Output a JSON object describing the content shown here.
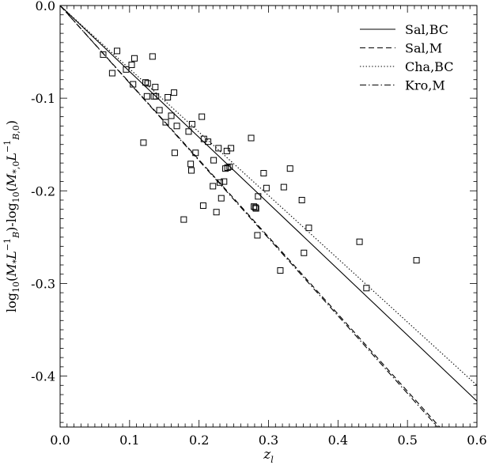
{
  "chart_data": {
    "type": "scatter",
    "title": "",
    "xlabel": "z_l",
    "xlabel_main": "z",
    "xlabel_sub": "l",
    "ylabel": "log10(M*LB^-1)-log10(M*,0LB,0^-1)",
    "xlim": [
      0.0,
      0.6
    ],
    "ylim": [
      -0.455,
      0.0
    ],
    "xticks": [
      0.0,
      0.1,
      0.2,
      0.3,
      0.4,
      0.5,
      0.6
    ],
    "xtick_labels": [
      "0.0",
      "0.1",
      "0.2",
      "0.3",
      "0.4",
      "0.5",
      "0.6"
    ],
    "yticks": [
      0.0,
      -0.1,
      -0.2,
      -0.3,
      -0.4
    ],
    "ytick_labels": [
      "0.0",
      "-0.1",
      "-0.2",
      "-0.3",
      "-0.4"
    ],
    "grid": false,
    "legend_position": "top-right",
    "series": [
      {
        "name": "Sal,BC",
        "style": "solid",
        "x": [
          0.0,
          0.6
        ],
        "y": [
          0.0,
          -0.427
        ]
      },
      {
        "name": "Sal,M",
        "style": "dashed",
        "x": [
          0.0,
          0.55
        ],
        "y": [
          0.0,
          -0.458
        ]
      },
      {
        "name": "Cha,BC",
        "style": "dotted",
        "x": [
          0.0,
          0.6
        ],
        "y": [
          0.0,
          -0.41
        ]
      },
      {
        "name": "Kro,M",
        "style": "dashdot",
        "x": [
          0.0,
          0.547
        ],
        "y": [
          0.0,
          -0.458
        ]
      }
    ],
    "points": {
      "marker": "open-square",
      "x": [
        0.062,
        0.075,
        0.082,
        0.095,
        0.103,
        0.107,
        0.105,
        0.12,
        0.123,
        0.125,
        0.126,
        0.133,
        0.135,
        0.137,
        0.138,
        0.143,
        0.152,
        0.155,
        0.16,
        0.164,
        0.165,
        0.168,
        0.178,
        0.185,
        0.188,
        0.189,
        0.19,
        0.195,
        0.204,
        0.206,
        0.207,
        0.213,
        0.22,
        0.221,
        0.225,
        0.228,
        0.23,
        0.232,
        0.236,
        0.238,
        0.24,
        0.241,
        0.244,
        0.246,
        0.275,
        0.279,
        0.281,
        0.282,
        0.284,
        0.285,
        0.293,
        0.297,
        0.317,
        0.322,
        0.331,
        0.348,
        0.351,
        0.358,
        0.431,
        0.441,
        0.513
      ],
      "y": [
        -0.053,
        -0.073,
        -0.049,
        -0.069,
        -0.064,
        -0.057,
        -0.085,
        -0.148,
        -0.083,
        -0.098,
        -0.084,
        -0.055,
        -0.098,
        -0.088,
        -0.098,
        -0.113,
        -0.126,
        -0.099,
        -0.119,
        -0.094,
        -0.159,
        -0.13,
        -0.231,
        -0.136,
        -0.171,
        -0.178,
        -0.128,
        -0.159,
        -0.12,
        -0.216,
        -0.144,
        -0.147,
        -0.195,
        -0.167,
        -0.223,
        -0.154,
        -0.191,
        -0.208,
        -0.19,
        -0.176,
        -0.157,
        -0.175,
        -0.174,
        -0.154,
        -0.143,
        -0.217,
        -0.218,
        -0.219,
        -0.248,
        -0.206,
        -0.181,
        -0.197,
        -0.286,
        -0.196,
        -0.176,
        -0.21,
        -0.267,
        -0.24,
        -0.255,
        -0.305,
        -0.275
      ]
    }
  }
}
